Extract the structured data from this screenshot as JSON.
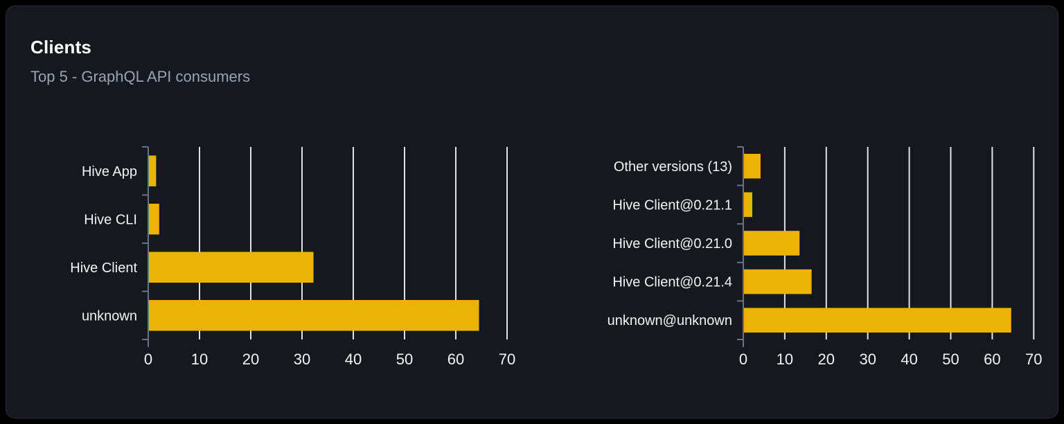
{
  "card": {
    "title": "Clients",
    "subtitle": "Top 5 - GraphQL API consumers"
  },
  "theme": {
    "page_bg": "#000000",
    "card_bg": "#15181e",
    "card_border": "#2b2f39",
    "bar_color": "#eab308",
    "grid_color": "#dfe3ea",
    "axis_color": "#6b7280",
    "label_color": "#f3f4f6",
    "tick_label_color": "#f3f4f6",
    "title_color": "#ffffff",
    "subtitle_color": "#9ca3af"
  },
  "chart_data": [
    {
      "type": "bar",
      "orientation": "horizontal",
      "name": "clients",
      "title": "",
      "xlabel": "",
      "ylabel": "",
      "categories": [
        "Hive App",
        "Hive CLI",
        "Hive Client",
        "unknown"
      ],
      "values": [
        1.4,
        2.0,
        32.1,
        64.4
      ],
      "xlim": [
        0,
        70
      ],
      "xticks": [
        0,
        10,
        20,
        30,
        40,
        50,
        60,
        70
      ],
      "grid": true,
      "legend": false
    },
    {
      "type": "bar",
      "orientation": "horizontal",
      "name": "client-versions",
      "title": "",
      "xlabel": "",
      "ylabel": "",
      "categories": [
        "Other versions (13)",
        "Hive Client@0.21.1",
        "Hive Client@0.21.0",
        "Hive Client@0.21.4",
        "unknown@unknown"
      ],
      "values": [
        4.0,
        2.0,
        13.4,
        16.3,
        64.4
      ],
      "xlim": [
        0,
        70
      ],
      "xticks": [
        0,
        10,
        20,
        30,
        40,
        50,
        60,
        70
      ],
      "grid": true,
      "legend": false
    }
  ]
}
